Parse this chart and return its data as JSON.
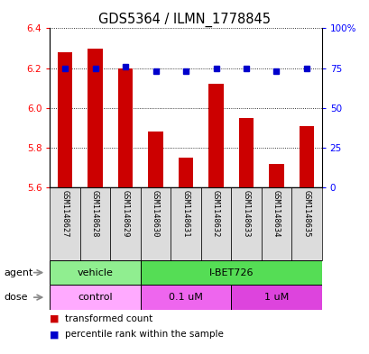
{
  "title": "GDS5364 / ILMN_1778845",
  "samples": [
    "GSM1148627",
    "GSM1148628",
    "GSM1148629",
    "GSM1148630",
    "GSM1148631",
    "GSM1148632",
    "GSM1148633",
    "GSM1148634",
    "GSM1148635"
  ],
  "red_values": [
    6.28,
    6.3,
    6.2,
    5.88,
    5.75,
    6.12,
    5.95,
    5.72,
    5.91
  ],
  "blue_values": [
    75,
    75,
    76,
    73,
    73,
    75,
    75,
    73,
    75
  ],
  "ylim_left": [
    5.6,
    6.4
  ],
  "ylim_right": [
    0,
    100
  ],
  "yticks_left": [
    5.6,
    5.8,
    6.0,
    6.2,
    6.4
  ],
  "yticks_right": [
    0,
    25,
    50,
    75,
    100
  ],
  "ytick_labels_right": [
    "0",
    "25",
    "50",
    "75",
    "100%"
  ],
  "agent_groups": [
    {
      "label": "vehicle",
      "start": 0,
      "end": 3,
      "color": "#90EE90"
    },
    {
      "label": "I-BET726",
      "start": 3,
      "end": 9,
      "color": "#55DD55"
    }
  ],
  "dose_groups": [
    {
      "label": "control",
      "start": 0,
      "end": 3,
      "color": "#FFAAFF"
    },
    {
      "label": "0.1 uM",
      "start": 3,
      "end": 6,
      "color": "#EE66EE"
    },
    {
      "label": "1 uM",
      "start": 6,
      "end": 9,
      "color": "#DD44DD"
    }
  ],
  "bar_color": "#CC0000",
  "dot_color": "#0000CC",
  "bar_width": 0.5,
  "bg_color": "#DCDCDC",
  "legend_red": "transformed count",
  "legend_blue": "percentile rank within the sample"
}
